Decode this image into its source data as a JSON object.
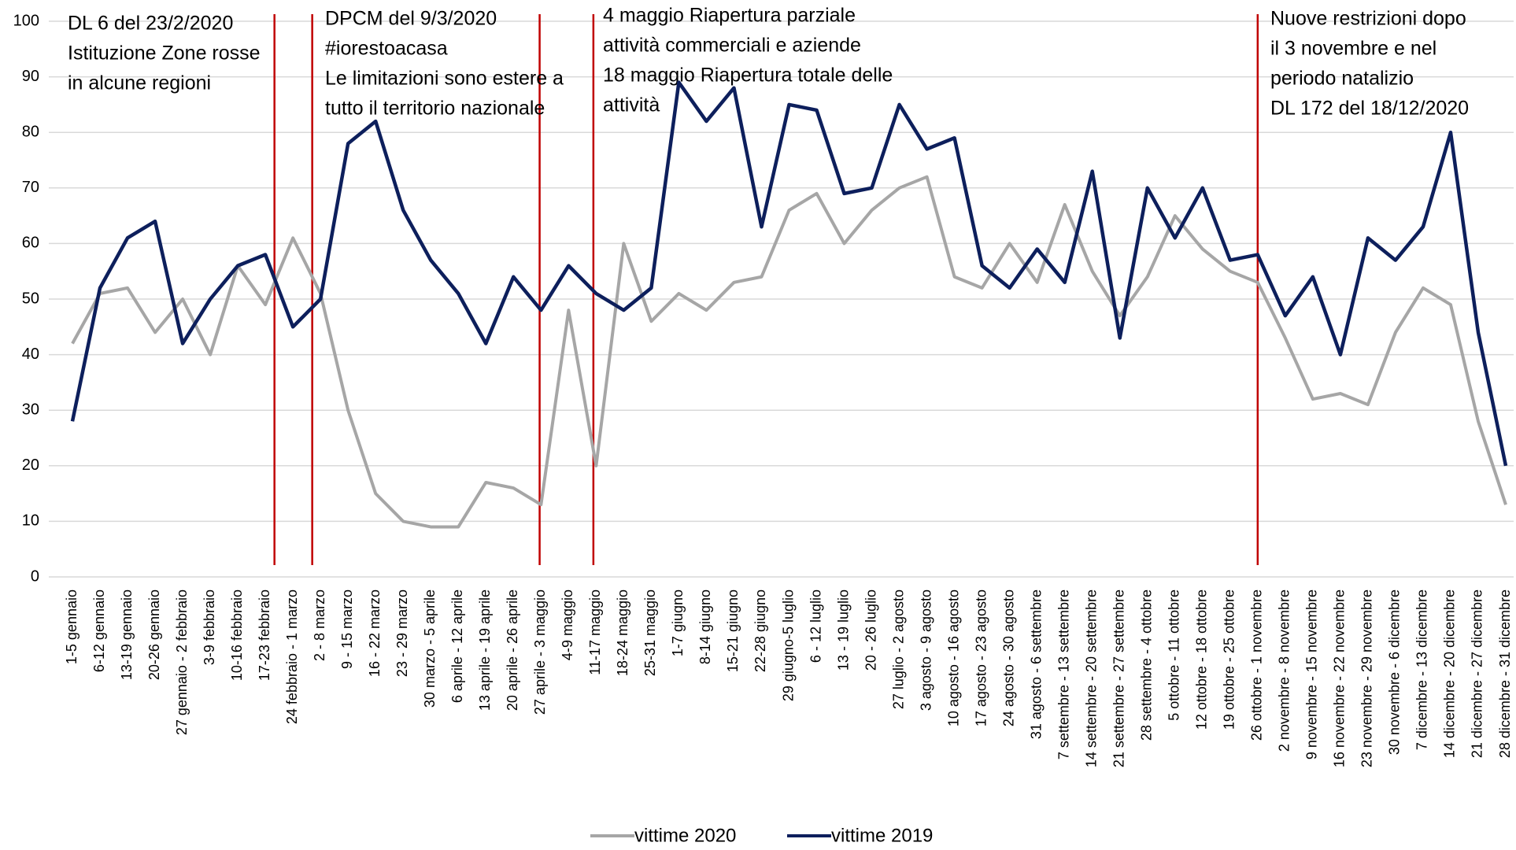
{
  "chart_data": {
    "type": "line",
    "categories": [
      "1-5 gennaio",
      "6-12 gennaio",
      "13-19 gennaio",
      "20-26 gennaio",
      "27 gennaio - 2 febbraio",
      "3-9 febbraio",
      "10-16 febbraio",
      "17-23 febbraio",
      "24 febbraio - 1 marzo",
      "2 - 8 marzo",
      "9 - 15 marzo",
      "16 - 22 marzo",
      "23 - 29 marzo",
      "30 marzo - 5 aprile",
      "6 aprile - 12 aprile",
      "13 aprile - 19 aprile",
      "20 aprile - 26 aprile",
      "27 aprile - 3 maggio",
      "4-9 maggio",
      "11-17 maggio",
      "18-24 maggio",
      "25-31 maggio",
      "1-7 giugno",
      "8-14 giugno",
      "15-21 giugno",
      "22-28 giugno",
      "29 giugno-5 luglio",
      "6 - 12 luglio",
      "13 - 19 luglio",
      "20 - 26 luglio",
      "27 luglio - 2 agosto",
      "3 agosto - 9 agosto",
      "10 agosto - 16 agosto",
      "17 agosto - 23 agosto",
      "24 agosto - 30 agosto",
      "31 agosto - 6 settembre",
      "7 settembre - 13 settembre",
      "14 settembre - 20 settembre",
      "21 settembre - 27 settembre",
      "28 settembre - 4 ottobre",
      "5 ottobre - 11 ottobre",
      "12 ottobre - 18 ottobre",
      "19 ottobre - 25 ottobre",
      "26 ottobre - 1 novembre",
      "2 novembre - 8 novembre",
      "9 novembre - 15 novembre",
      "16 novembre - 22 novembre",
      "23 novembre - 29 novembre",
      "30 novembre - 6 dicembre",
      "7 dicembre - 13 dicembre",
      "14 dicembre - 20 dicembre",
      "21 dicembre - 27 dicembre",
      "28 dicembre - 31 dicembre"
    ],
    "series": [
      {
        "name": "vittime 2020",
        "color": "#a6a6a6",
        "values": [
          42,
          51,
          52,
          44,
          50,
          40,
          56,
          49,
          61,
          51,
          30,
          15,
          10,
          9,
          9,
          17,
          16,
          13,
          48,
          20,
          60,
          46,
          51,
          48,
          53,
          54,
          66,
          69,
          60,
          66,
          70,
          72,
          54,
          52,
          60,
          53,
          67,
          55,
          47,
          54,
          65,
          59,
          55,
          53,
          43,
          32,
          33,
          31,
          44,
          52,
          49,
          28,
          13
        ]
      },
      {
        "name": "vittime 2019",
        "color": "#0d1f5c",
        "values": [
          28,
          52,
          61,
          64,
          42,
          50,
          56,
          58,
          45,
          50,
          78,
          82,
          66,
          57,
          51,
          42,
          54,
          48,
          56,
          51,
          48,
          52,
          89,
          82,
          88,
          63,
          85,
          84,
          69,
          70,
          85,
          77,
          79,
          56,
          52,
          59,
          53,
          73,
          43,
          70,
          61,
          70,
          57,
          58,
          47,
          54,
          40,
          61,
          57,
          63,
          80,
          44,
          20
        ]
      }
    ],
    "ylim": [
      0,
      100
    ],
    "yticks": [
      0,
      10,
      20,
      30,
      40,
      50,
      60,
      70,
      80,
      90,
      100
    ],
    "grid": true,
    "annotations": [
      [
        "DL 6 del 23/2/2020",
        "Istituzione Zone rosse",
        "in alcune regioni"
      ],
      [
        "DPCM del 9/3/2020",
        "#iorestoacasa",
        "Le limitazioni sono estere a",
        "tutto il territorio nazionale"
      ],
      [
        "4 maggio Riapertura parziale",
        "attività commerciali e aziende",
        "18 maggio Riapertura totale delle",
        "attività"
      ],
      [
        "Nuove restrizioni dopo",
        "il 3 novembre e nel",
        "periodo natalizio",
        "DL 172 del 18/12/2020"
      ]
    ],
    "event_line_color": "#c00000"
  }
}
